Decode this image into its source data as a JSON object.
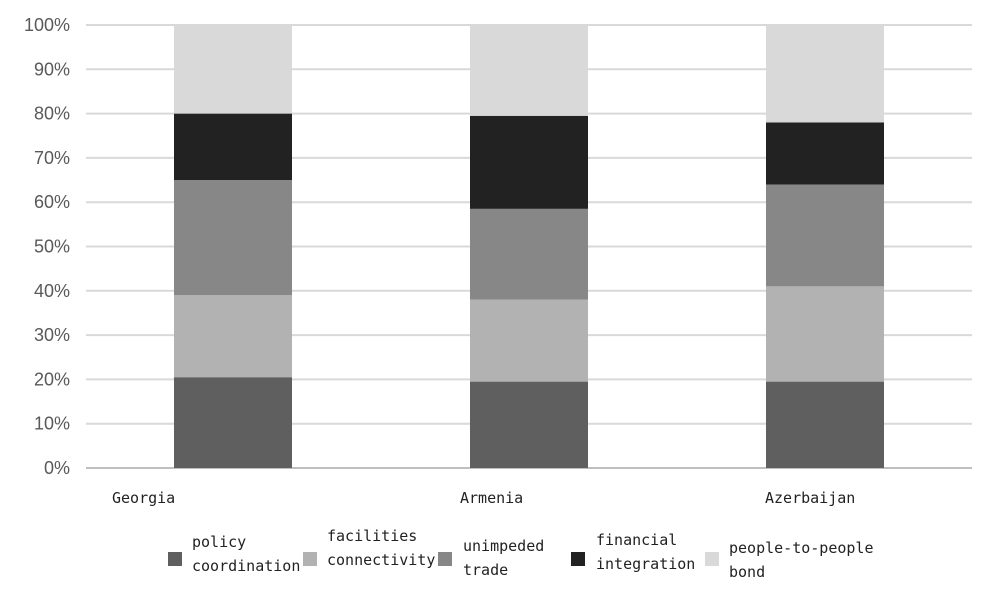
{
  "chart_data": {
    "type": "bar",
    "stacked": true,
    "percent": true,
    "categories": [
      "Georgia",
      "Armenia",
      "Azerbaijan"
    ],
    "ylim": [
      0,
      100
    ],
    "yticks": [
      "0%",
      "10%",
      "20%",
      "30%",
      "40%",
      "50%",
      "60%",
      "70%",
      "80%",
      "90%",
      "100%"
    ],
    "grid": true,
    "legend": "bottom",
    "series": [
      {
        "name": "policy coordination",
        "legend_lines": [
          "policy",
          "coordination"
        ],
        "color": "#5f5f5f",
        "values": [
          20.5,
          19.5,
          19.5
        ]
      },
      {
        "name": "facilities connectivity",
        "legend_lines": [
          "facilities",
          "connectivity"
        ],
        "color": "#b2b2b2",
        "values": [
          18.5,
          18.5,
          21.5
        ]
      },
      {
        "name": "unimpeded trade",
        "legend_lines": [
          "unimpeded",
          "trade"
        ],
        "color": "#878787",
        "values": [
          26.0,
          20.5,
          23.0
        ]
      },
      {
        "name": "financial integration",
        "legend_lines": [
          "financial",
          "integration"
        ],
        "color": "#222222",
        "values": [
          15.0,
          21.0,
          14.0
        ]
      },
      {
        "name": "people-to-people bond",
        "legend_lines": [
          "people-to-people",
          "bond"
        ],
        "color": "#d9d9d9",
        "values": [
          20.0,
          20.5,
          22.0
        ]
      }
    ]
  }
}
